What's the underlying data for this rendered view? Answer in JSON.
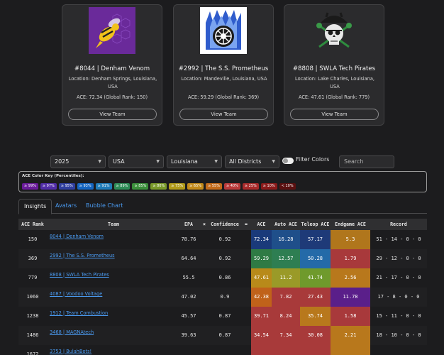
{
  "cards": [
    {
      "title": "#8044 | Denham Venom",
      "location": "Location: Denham Springs, Louisiana, USA",
      "ace": "ACE: 72.34 (Global Rank: 150)",
      "button": "View Team",
      "logo": "hornet-logo"
    },
    {
      "title": "#2992 | The S.S. Prometheus",
      "location": "Location: Mandeville, Louisiana, USA",
      "ace": "ACE: 59.29 (Global Rank: 369)",
      "button": "View Team",
      "logo": "flaming-wheel-logo"
    },
    {
      "title": "#8808 | SWLA Tech Pirates",
      "location": "Location: Lake Charles, Louisiana, USA",
      "ace": "ACE: 47.61 (Global Rank: 779)",
      "button": "View Team",
      "logo": "pirate-skull-logo"
    }
  ],
  "filters": {
    "year": "2025",
    "country": "USA",
    "state": "Louisiana",
    "district": "All Districts",
    "toggle_label": "Filter Colors",
    "search_placeholder": "Search"
  },
  "color_key": {
    "title": "ACE Color Key (Percentiles):",
    "items": [
      {
        "label": "≥ 99%",
        "color": "#6a1b9a"
      },
      {
        "label": "≥ 97%",
        "color": "#512da8"
      },
      {
        "label": "≥ 95%",
        "color": "#303f9f"
      },
      {
        "label": "≥ 93%",
        "color": "#1565c0"
      },
      {
        "label": "≥ 91%",
        "color": "#1f7bb8"
      },
      {
        "label": "≥ 89%",
        "color": "#2e8b57"
      },
      {
        "label": "≥ 85%",
        "color": "#3b8e3b"
      },
      {
        "label": "≥ 80%",
        "color": "#7a9a2a"
      },
      {
        "label": "≥ 75%",
        "color": "#b09a1a"
      },
      {
        "label": "≥ 65%",
        "color": "#c28a1a"
      },
      {
        "label": "≥ 55%",
        "color": "#c26a1a"
      },
      {
        "label": "≥ 40%",
        "color": "#b93a3a"
      },
      {
        "label": "≥ 25%",
        "color": "#a82a2a"
      },
      {
        "label": "≥ 10%",
        "color": "#8a1a1a"
      },
      {
        "label": "< 10%",
        "color": "#5a1010"
      }
    ]
  },
  "tabs": [
    "Insights",
    "Avatars",
    "Bubble Chart"
  ],
  "table": {
    "headers": [
      "ACE Rank",
      "Team",
      "EPA",
      "×",
      "Confidence",
      "=",
      "ACE",
      "Auto ACE",
      "Teleop ACE",
      "Endgame ACE",
      "Record"
    ],
    "rows": [
      {
        "rank": "150",
        "team": "8044 | Denham Venom",
        "epa": "78.76",
        "conf": "0.92",
        "ace": "72.34",
        "auto": "16.28",
        "teleop": "57.17",
        "endgame": "5.3",
        "record": "51 - 14 - 0 - 0",
        "colors": {
          "ace": "#1a3a7a",
          "auto": "#1f4f8a",
          "teleop": "#1e3a78",
          "endgame": "#b0761c"
        }
      },
      {
        "rank": "369",
        "team": "2992 | The S.S. Prometheus",
        "epa": "64.64",
        "conf": "0.92",
        "ace": "59.29",
        "auto": "12.57",
        "teleop": "50.28",
        "endgame": "1.79",
        "record": "29 - 12 - 0 - 0",
        "colors": {
          "ace": "#2f7a44",
          "auto": "#2e7e52",
          "teleop": "#246aa8",
          "endgame": "#a8393b"
        }
      },
      {
        "rank": "779",
        "team": "8808 | SWLA Tech Pirates",
        "epa": "55.5",
        "conf": "0.86",
        "ace": "47.61",
        "auto": "11.2",
        "teleop": "41.74",
        "endgame": "2.56",
        "record": "21 - 17 - 0 - 0",
        "colors": {
          "ace": "#b88a1a",
          "auto": "#9a9a28",
          "teleop": "#6f9a2c",
          "endgame": "#b8781c"
        }
      },
      {
        "rank": "1060",
        "team": "4087 | Voodoo Voltage",
        "epa": "47.02",
        "conf": "0.9",
        "ace": "42.38",
        "auto": "7.82",
        "teleop": "27.43",
        "endgame": "11.78",
        "record": "17 - 8 - 0 - 0",
        "colors": {
          "ace": "#c0621a",
          "auto": "#a83a3a",
          "teleop": "#a83a3a",
          "endgame": "#5a1f8a"
        }
      },
      {
        "rank": "1238",
        "team": "1912 | Team Combustion",
        "epa": "45.57",
        "conf": "0.87",
        "ace": "39.71",
        "auto": "8.24",
        "teleop": "35.74",
        "endgame": "1.58",
        "record": "15 - 11 - 0 - 0",
        "colors": {
          "ace": "#a83a3a",
          "auto": "#a83a3a",
          "teleop": "#b8781c",
          "endgame": "#a8393b"
        }
      },
      {
        "rank": "1486",
        "team": "3468 | MAGNAtech",
        "epa": "39.63",
        "conf": "0.87",
        "ace": "34.54",
        "auto": "7.34",
        "teleop": "30.08",
        "endgame": "2.21",
        "record": "18 - 10 - 0 - 0",
        "colors": {
          "ace": "#a83a3a",
          "auto": "#a83a3a",
          "teleop": "#a83a3a",
          "endgame": "#b8781c"
        }
      },
      {
        "rank": "1672",
        "team": "3753 | BulahBots!",
        "epa": "",
        "conf": "",
        "ace": "",
        "auto": "",
        "teleop": "",
        "endgame": "",
        "record": "",
        "colors": {
          "ace": "#a83a3a",
          "auto": "#a83a3a",
          "teleop": "#a83a3a",
          "endgame": "#b8781c"
        }
      }
    ]
  }
}
